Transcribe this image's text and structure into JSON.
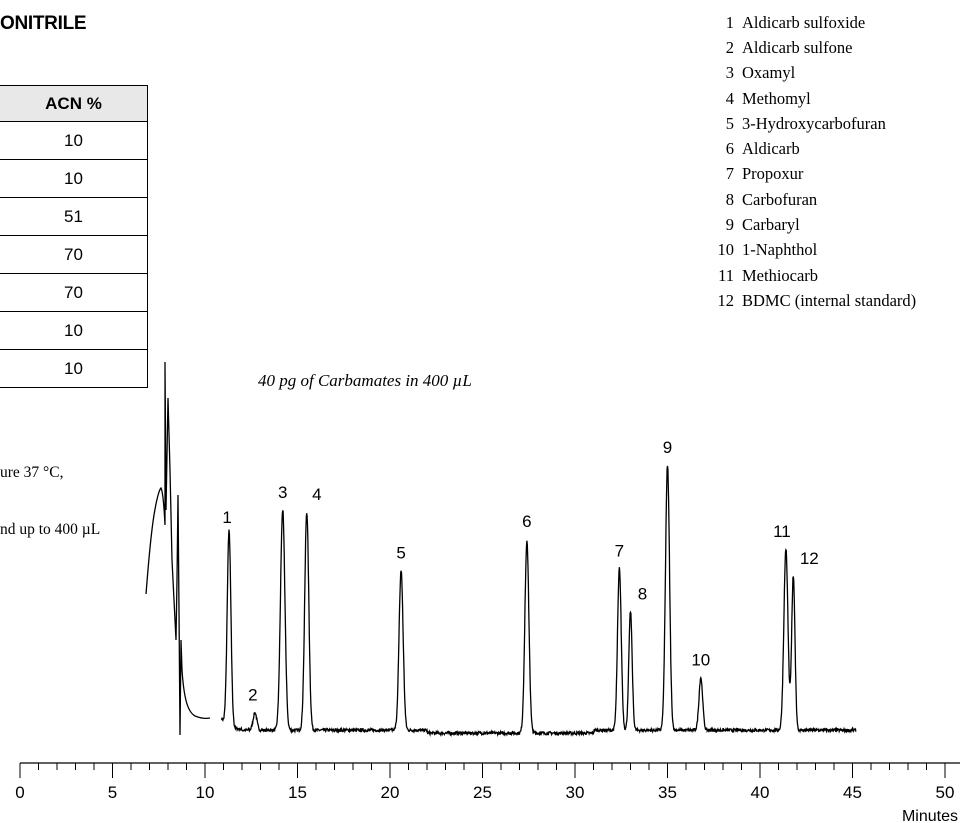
{
  "title": "ONITRILE",
  "gradient_table": {
    "header": "ACN %",
    "values": [
      "10",
      "10",
      "51",
      "70",
      "70",
      "10",
      "10"
    ]
  },
  "conditions": [
    "ure 37 °C,",
    "nd up to 400 µL"
  ],
  "compounds": [
    {
      "num": "1",
      "name": "Aldicarb sulfoxide"
    },
    {
      "num": "2",
      "name": "Aldicarb sulfone"
    },
    {
      "num": "3",
      "name": "Oxamyl"
    },
    {
      "num": "4",
      "name": "Methomyl"
    },
    {
      "num": "5",
      "name": "3-Hydroxycarbofuran"
    },
    {
      "num": "6",
      "name": "Aldicarb"
    },
    {
      "num": "7",
      "name": "Propoxur"
    },
    {
      "num": "8",
      "name": "Carbofuran"
    },
    {
      "num": "9",
      "name": "Carbaryl"
    },
    {
      "num": "10",
      "name": "1-Naphthol"
    },
    {
      "num": "11",
      "name": "Methiocarb"
    },
    {
      "num": "12",
      "name": "BDMC (internal standard)"
    }
  ],
  "chart_data": {
    "type": "line",
    "subtitle": "40 pg of Carbamates in 400 µL",
    "xlabel": "Minutes",
    "xlim": [
      0,
      50
    ],
    "xticks": [
      0,
      5,
      10,
      15,
      20,
      25,
      30,
      35,
      40,
      45,
      50
    ],
    "ylim": [
      0,
      100
    ],
    "baseline": 4,
    "peaks": [
      {
        "label": "1",
        "rt": 11.3,
        "height": 100,
        "width": 0.1
      },
      {
        "label": "2",
        "rt": 12.7,
        "height": 9,
        "width": 0.1
      },
      {
        "label": "3",
        "rt": 14.2,
        "height": 113,
        "width": 0.12
      },
      {
        "label": "4",
        "rt": 15.5,
        "height": 112,
        "width": 0.11
      },
      {
        "label": "5",
        "rt": 20.6,
        "height": 82,
        "width": 0.11
      },
      {
        "label": "6",
        "rt": 27.4,
        "height": 98,
        "width": 0.11
      },
      {
        "label": "7",
        "rt": 32.4,
        "height": 83,
        "width": 0.1
      },
      {
        "label": "8",
        "rt": 33.0,
        "height": 61,
        "width": 0.09
      },
      {
        "label": "9",
        "rt": 35.0,
        "height": 136,
        "width": 0.11
      },
      {
        "label": "10",
        "rt": 36.8,
        "height": 27,
        "width": 0.1
      },
      {
        "label": "11",
        "rt": 41.4,
        "height": 93,
        "width": 0.11
      },
      {
        "label": "12",
        "rt": 41.8,
        "height": 79,
        "width": 0.09
      }
    ]
  }
}
